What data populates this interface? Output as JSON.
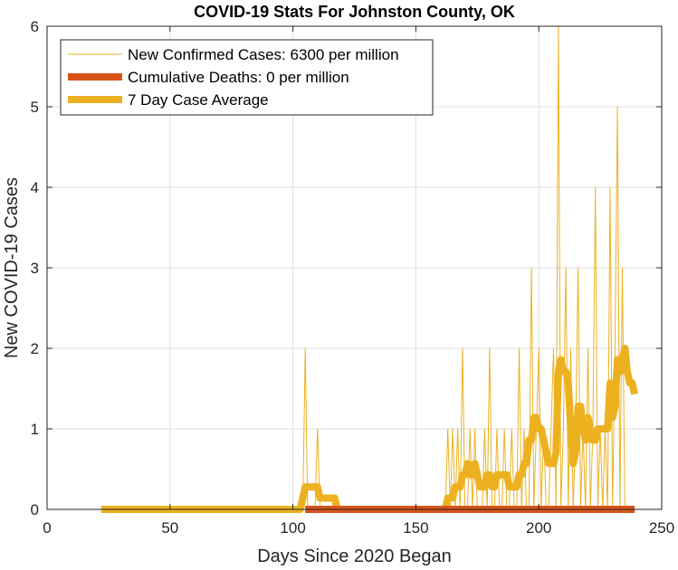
{
  "chart_data": {
    "type": "line",
    "title": "COVID-19 Stats For Johnston County, OK",
    "xlabel": "Days Since 2020 Began",
    "ylabel": "New COVID-19 Cases",
    "xlim": [
      0,
      250
    ],
    "ylim": [
      0,
      6
    ],
    "xticks": [
      0,
      50,
      100,
      150,
      200,
      250
    ],
    "yticks": [
      0,
      1,
      2,
      3,
      4,
      5,
      6
    ],
    "grid": true,
    "legend_position": "top-left",
    "series": [
      {
        "name": "New Confirmed Cases: 6300 per million",
        "color": "#EDB120",
        "style": "thin",
        "x": [
          22,
          104,
          105,
          106,
          109,
          110,
          111,
          162,
          163,
          164,
          165,
          166,
          167,
          168,
          169,
          170,
          171,
          172,
          173,
          174,
          175,
          176,
          177,
          178,
          179,
          180,
          181,
          182,
          183,
          184,
          185,
          186,
          187,
          188,
          189,
          190,
          191,
          192,
          193,
          194,
          195,
          196,
          197,
          198,
          199,
          200,
          201,
          202,
          203,
          204,
          205,
          206,
          207,
          208,
          209,
          210,
          211,
          212,
          213,
          214,
          215,
          216,
          217,
          218,
          219,
          220,
          221,
          222,
          223,
          224,
          225,
          226,
          227,
          228,
          229,
          230,
          231,
          232,
          233,
          234,
          235,
          236,
          237,
          238,
          239
        ],
        "y": [
          0,
          0,
          2,
          0,
          0,
          1,
          0,
          0,
          1,
          0,
          1,
          0,
          1,
          0,
          2,
          0,
          0,
          1,
          0,
          1,
          0,
          0,
          0,
          1,
          0,
          2,
          0,
          0,
          1,
          0,
          0,
          1,
          0,
          0,
          1,
          0,
          0,
          2,
          0,
          1,
          0,
          0,
          3,
          0,
          1,
          2,
          0,
          1,
          0,
          0,
          1,
          2,
          0,
          6,
          0,
          1,
          3,
          0,
          2,
          0,
          1,
          3,
          0,
          1,
          0,
          2,
          0,
          1,
          4,
          0,
          1,
          0,
          1,
          0,
          4,
          0,
          2,
          5,
          0,
          3,
          0,
          0,
          0,
          0,
          0
        ]
      },
      {
        "name": "Cumulative Deaths: 0 per million",
        "color": "#D95319",
        "style": "thick",
        "x": [
          105,
          118,
          163,
          239
        ],
        "y": [
          0,
          0,
          0,
          0
        ]
      },
      {
        "name": "7 Day Case Average",
        "color": "#EDB120",
        "style": "thick",
        "x": [
          22,
          103,
          104,
          105,
          110,
          111,
          112,
          116,
          117,
          118,
          119,
          160,
          161,
          162,
          163,
          164,
          165,
          166,
          167,
          168,
          169,
          170,
          171,
          172,
          173,
          174,
          175,
          176,
          177,
          178,
          179,
          180,
          181,
          182,
          183,
          184,
          185,
          186,
          187,
          188,
          189,
          190,
          191,
          192,
          193,
          194,
          195,
          196,
          197,
          198,
          199,
          200,
          201,
          202,
          203,
          204,
          205,
          206,
          207,
          208,
          209,
          210,
          211,
          212,
          213,
          214,
          215,
          216,
          217,
          218,
          219,
          220,
          221,
          222,
          223,
          224,
          225,
          226,
          227,
          228,
          229,
          230,
          231,
          232,
          233,
          234,
          235,
          236,
          237,
          238,
          239
        ],
        "y": [
          0,
          0,
          0.14,
          0.28,
          0.28,
          0.14,
          0.14,
          0.14,
          0.14,
          0,
          0,
          0,
          0,
          0,
          0.14,
          0.14,
          0.14,
          0.28,
          0.28,
          0.28,
          0.43,
          0.43,
          0.57,
          0.43,
          0.43,
          0.57,
          0.43,
          0.28,
          0.28,
          0.28,
          0.43,
          0.43,
          0.28,
          0.28,
          0.43,
          0.43,
          0.43,
          0.43,
          0.43,
          0.28,
          0.28,
          0.28,
          0.28,
          0.43,
          0.43,
          0.57,
          0.57,
          0.86,
          0.86,
          1.14,
          1.14,
          1.0,
          1.0,
          0.86,
          0.71,
          0.57,
          0.57,
          0.57,
          0.71,
          1.71,
          1.86,
          1.71,
          1.71,
          1.57,
          1.0,
          0.57,
          0.71,
          1.28,
          1.28,
          1.0,
          0.86,
          1.14,
          1.0,
          0.86,
          0.86,
          1.0,
          1.0,
          1.0,
          1.0,
          1.0,
          1.57,
          1.14,
          1.28,
          1.86,
          1.71,
          1.86,
          2.0,
          1.71,
          1.57,
          1.57,
          1.43
        ]
      }
    ]
  }
}
